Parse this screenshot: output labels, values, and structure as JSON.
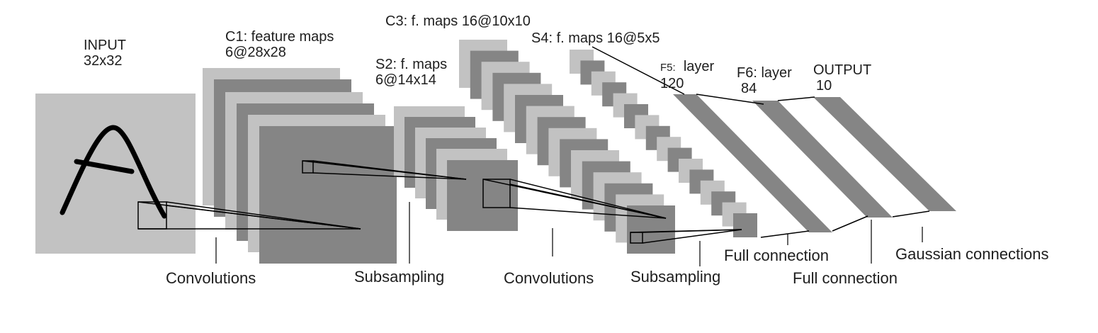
{
  "layers": {
    "input": {
      "name": "INPUT",
      "size": "32x32"
    },
    "c1": {
      "name": "C1: feature maps",
      "size": "6@28x28"
    },
    "s2": {
      "name": "S2: f. maps",
      "size": "6@14x14"
    },
    "c3": {
      "name": "C3: f. maps 16@10x10"
    },
    "s4": {
      "name": "S4: f. maps 16@5x5"
    },
    "f5": {
      "name_prefix": "F5:",
      "name_suffix": "layer",
      "size": "120"
    },
    "f6": {
      "name": "F6: layer",
      "size": "84"
    },
    "output": {
      "name": "OUTPUT",
      "size": "10"
    }
  },
  "operations": {
    "convolutions_1": "Convolutions",
    "subsampling_1": "Subsampling",
    "convolutions_2": "Convolutions",
    "subsampling_2": "Subsampling",
    "full_connection_1": "Full connection",
    "full_connection_2": "Full connection",
    "gaussian_connections": "Gaussian connections"
  },
  "colors": {
    "light_gray": "#c2c2c2",
    "dark_gray": "#858585",
    "line": "#000000",
    "text": "#1e1e1e"
  },
  "input_glyph": "A"
}
